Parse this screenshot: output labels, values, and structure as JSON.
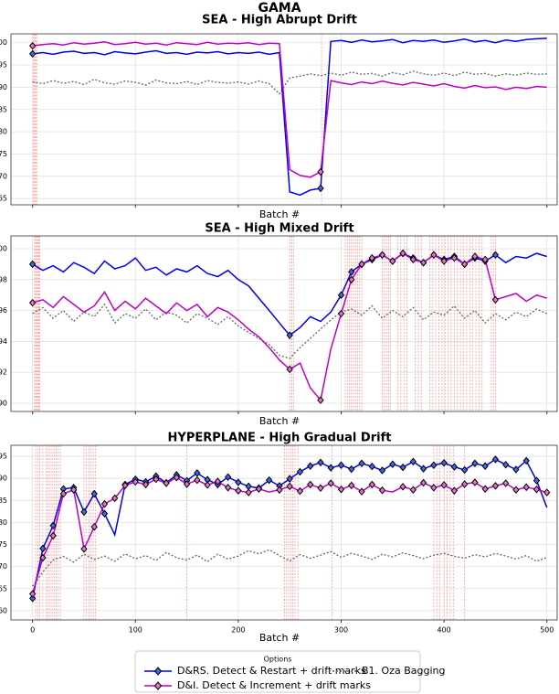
{
  "title": "GAMA",
  "legend_title": "Options",
  "chart_data": [
    {
      "type": "line",
      "title": "SEA - High Abrupt Drift",
      "xlabel": "Batch #",
      "grid": true,
      "show_xtick_labels": false,
      "xlim": [
        -21,
        510
      ],
      "ylim": [
        63.6,
        102
      ],
      "xticks": [
        0,
        100,
        200,
        300,
        400,
        500
      ],
      "yticks": [
        65,
        70,
        75,
        80,
        85,
        90,
        95,
        100
      ],
      "drift_color": "#ff9999",
      "drift_x": [
        1,
        2,
        3,
        4,
        281
      ],
      "x": [
        0,
        10,
        20,
        30,
        40,
        50,
        60,
        70,
        80,
        90,
        100,
        110,
        120,
        130,
        140,
        150,
        160,
        170,
        180,
        190,
        200,
        210,
        220,
        230,
        240,
        250,
        260,
        270,
        280,
        290,
        300,
        310,
        320,
        330,
        340,
        350,
        360,
        370,
        380,
        390,
        400,
        410,
        420,
        430,
        440,
        450,
        460,
        470,
        480,
        490,
        500
      ],
      "series": [
        {
          "name": "D&RS. Detect & Restart + drift marks",
          "color": "#0000ee",
          "style": "solid",
          "marker_color": "#4169e1",
          "marker_x": [
            0,
            280
          ],
          "values": [
            97.5,
            97.8,
            97.4,
            97.9,
            98.1,
            97.6,
            97.8,
            97.3,
            98.0,
            97.7,
            97.5,
            97.9,
            98.2,
            97.6,
            97.8,
            97.4,
            97.9,
            97.7,
            98.0,
            97.5,
            97.8,
            97.6,
            97.9,
            97.4,
            97.8,
            66.5,
            65.8,
            66.9,
            67.3,
            100.3,
            100.5,
            100.1,
            100.6,
            100.2,
            100.4,
            100.7,
            100.0,
            100.5,
            100.3,
            100.6,
            100.1,
            100.4,
            100.8,
            100.2,
            100.5,
            100.0,
            100.6,
            100.3,
            100.7,
            100.9,
            101.0
          ]
        },
        {
          "name": "D&I. Detect & Increment + drift marks",
          "color": "#c000c0",
          "style": "solid",
          "marker_color": "#e377c2",
          "marker_x": [
            0,
            280
          ],
          "values": [
            99.3,
            99.6,
            99.8,
            99.5,
            100.0,
            99.7,
            99.9,
            100.2,
            99.6,
            99.8,
            100.1,
            99.7,
            99.9,
            99.5,
            100.0,
            99.8,
            99.6,
            100.1,
            99.7,
            99.9,
            99.8,
            100.0,
            99.6,
            99.9,
            99.8,
            71.5,
            70.2,
            69.8,
            71.0,
            91.5,
            91.0,
            90.6,
            91.2,
            90.8,
            91.4,
            90.9,
            90.5,
            91.1,
            90.7,
            90.3,
            90.8,
            90.2,
            89.8,
            90.4,
            89.9,
            90.1,
            89.5,
            90.0,
            89.7,
            90.2,
            90.0
          ]
        },
        {
          "name": "B1. Oza Bagging",
          "color": "#666666",
          "style": "dotted",
          "marker_x": [],
          "values": [
            91.2,
            90.8,
            91.5,
            90.9,
            91.3,
            90.6,
            91.8,
            91.0,
            90.7,
            91.4,
            91.1,
            90.5,
            91.6,
            91.0,
            90.8,
            91.3,
            90.6,
            91.5,
            91.1,
            90.9,
            91.2,
            90.7,
            91.4,
            90.8,
            88.5,
            92.1,
            92.5,
            93.0,
            92.6,
            93.2,
            92.7,
            93.4,
            92.9,
            93.1,
            92.5,
            93.3,
            92.8,
            93.6,
            93.0,
            92.7,
            93.2,
            92.6,
            93.4,
            92.9,
            93.1,
            92.5,
            93.0,
            92.7,
            93.2,
            92.9,
            93.0
          ]
        }
      ]
    },
    {
      "type": "line",
      "title": "SEA - High Mixed Drift",
      "xlabel": "Batch #",
      "grid": true,
      "show_xtick_labels": false,
      "xlim": [
        -21,
        510
      ],
      "ylim": [
        89.47,
        100.83
      ],
      "xticks": [
        0,
        100,
        200,
        300,
        400,
        500
      ],
      "yticks": [
        90,
        92,
        94,
        96,
        98,
        100
      ],
      "drift_color": "#ff9999",
      "drift_x": [
        2,
        3,
        4,
        5,
        6,
        7,
        250,
        252,
        254,
        304,
        306,
        308,
        310,
        312,
        314,
        316,
        318,
        320,
        340,
        342,
        344,
        346,
        348,
        355,
        358,
        361,
        364,
        372,
        375,
        378,
        386,
        389,
        392,
        395,
        398,
        401,
        404,
        407,
        410,
        413,
        416,
        419,
        422,
        425,
        428,
        431,
        434,
        437,
        446,
        448,
        450
      ],
      "x": [
        0,
        10,
        20,
        30,
        40,
        50,
        60,
        70,
        80,
        90,
        100,
        110,
        120,
        130,
        140,
        150,
        160,
        170,
        180,
        190,
        200,
        210,
        220,
        230,
        240,
        250,
        260,
        270,
        280,
        290,
        300,
        310,
        320,
        330,
        340,
        350,
        360,
        370,
        380,
        390,
        400,
        410,
        420,
        430,
        440,
        450,
        460,
        470,
        480,
        490,
        500
      ],
      "series": [
        {
          "name": "D&RS. Detect & Restart + drift marks",
          "color": "#0000ee",
          "style": "solid",
          "marker_color": "#4169e1",
          "marker_x": [
            0,
            250,
            300,
            310,
            320,
            330,
            340,
            350,
            360,
            370,
            380,
            390,
            400,
            410,
            420,
            430,
            440,
            450
          ],
          "values": [
            99.0,
            98.6,
            98.9,
            98.5,
            99.1,
            98.8,
            98.4,
            99.2,
            98.7,
            98.9,
            99.4,
            98.6,
            98.8,
            98.3,
            98.7,
            98.5,
            98.9,
            98.4,
            98.2,
            98.6,
            98.0,
            97.6,
            96.8,
            96.0,
            95.2,
            94.4,
            94.9,
            95.6,
            95.3,
            95.9,
            97.0,
            98.5,
            99.0,
            99.3,
            99.6,
            99.2,
            99.7,
            99.4,
            99.1,
            99.6,
            99.3,
            99.5,
            99.0,
            99.4,
            99.2,
            99.6,
            99.1,
            99.5,
            99.4,
            99.7,
            99.5
          ]
        },
        {
          "name": "D&I. Detect & Increment + drift marks",
          "color": "#c000c0",
          "style": "solid",
          "marker_color": "#e377c2",
          "marker_x": [
            0,
            250,
            280,
            300,
            310,
            320,
            330,
            340,
            350,
            360,
            370,
            380,
            390,
            400,
            410,
            420,
            430,
            440,
            450
          ],
          "values": [
            96.5,
            96.7,
            96.2,
            96.9,
            96.4,
            95.9,
            96.3,
            97.2,
            96.0,
            96.6,
            96.1,
            96.8,
            96.3,
            95.8,
            96.5,
            96.0,
            96.4,
            95.6,
            96.2,
            95.9,
            95.4,
            94.8,
            94.3,
            93.6,
            92.8,
            92.2,
            92.6,
            91.0,
            90.2,
            93.5,
            95.8,
            98.0,
            99.0,
            99.4,
            99.6,
            99.2,
            99.7,
            99.3,
            99.1,
            99.6,
            99.2,
            99.4,
            99.0,
            99.5,
            99.3,
            96.7,
            96.9,
            97.1,
            96.6,
            97.0,
            96.8
          ]
        },
        {
          "name": "B1. Oza Bagging",
          "color": "#666666",
          "style": "dotted",
          "marker_x": [],
          "values": [
            95.8,
            96.2,
            95.5,
            96.0,
            95.3,
            95.9,
            95.6,
            96.4,
            95.2,
            95.8,
            95.5,
            96.1,
            95.4,
            95.9,
            95.7,
            95.2,
            95.8,
            95.5,
            95.1,
            95.6,
            95.0,
            94.6,
            94.2,
            93.8,
            93.1,
            92.9,
            93.6,
            94.2,
            94.8,
            95.4,
            95.9,
            96.1,
            95.7,
            96.3,
            95.5,
            96.0,
            95.6,
            96.2,
            95.4,
            95.9,
            95.7,
            96.3,
            95.5,
            96.0,
            95.2,
            95.8,
            95.4,
            95.9,
            95.6,
            96.1,
            95.8
          ]
        }
      ]
    },
    {
      "type": "line",
      "title": "HYPERPLANE - High Gradual Drift",
      "xlabel": "Batch #",
      "grid": true,
      "show_xtick_labels": true,
      "xlim": [
        -21,
        510
      ],
      "ylim": [
        57.9,
        97.5
      ],
      "xticks": [
        0,
        100,
        200,
        300,
        400,
        500
      ],
      "yticks": [
        60,
        65,
        70,
        75,
        80,
        85,
        90,
        95
      ],
      "drift_color": "#ff9999",
      "drift_x": [
        3,
        5,
        7,
        10,
        13,
        15,
        17,
        19,
        21,
        23,
        25,
        27,
        50,
        52,
        55,
        57,
        59,
        61,
        150,
        245,
        247,
        249,
        251,
        253,
        255,
        258,
        291,
        390,
        393,
        396,
        400,
        403,
        406,
        409,
        420
      ],
      "x": [
        0,
        10,
        20,
        30,
        40,
        50,
        60,
        70,
        80,
        90,
        100,
        110,
        120,
        130,
        140,
        150,
        160,
        170,
        180,
        190,
        200,
        210,
        220,
        230,
        240,
        250,
        260,
        270,
        280,
        290,
        300,
        310,
        320,
        330,
        340,
        350,
        360,
        370,
        380,
        390,
        400,
        410,
        420,
        430,
        440,
        450,
        460,
        470,
        480,
        490,
        500
      ],
      "series": [
        {
          "name": "D&RS. Detect & Restart + drift marks",
          "color": "#0000ee",
          "style": "solid",
          "marker_color": "#4169e1",
          "marker_x": [
            0,
            10,
            20,
            30,
            40,
            50,
            60,
            70,
            90,
            100,
            110,
            120,
            130,
            140,
            150,
            160,
            170,
            180,
            190,
            200,
            210,
            220,
            230,
            240,
            250,
            260,
            270,
            280,
            290,
            300,
            310,
            320,
            330,
            340,
            350,
            360,
            370,
            380,
            390,
            400,
            410,
            420,
            430,
            440,
            450,
            460,
            470,
            480,
            490
          ],
          "values": [
            62.8,
            74.1,
            79.3,
            87.6,
            87.9,
            82.4,
            86.5,
            82.0,
            77.2,
            88.6,
            89.8,
            89.2,
            90.5,
            89.0,
            90.8,
            89.5,
            91.2,
            89.7,
            88.6,
            90.3,
            89.1,
            88.2,
            87.8,
            89.6,
            88.3,
            89.9,
            91.5,
            92.8,
            93.6,
            92.4,
            93.0,
            92.1,
            93.4,
            92.7,
            91.8,
            93.2,
            92.5,
            93.8,
            92.2,
            93.0,
            93.5,
            92.6,
            91.9,
            93.4,
            92.8,
            94.3,
            93.1,
            92.0,
            94.0,
            89.5,
            83.4
          ]
        },
        {
          "name": "D&I. Detect & Increment + drift marks",
          "color": "#c000c0",
          "style": "solid",
          "marker_color": "#e377c2",
          "marker_x": [
            0,
            10,
            20,
            30,
            40,
            50,
            60,
            70,
            80,
            90,
            100,
            110,
            120,
            130,
            140,
            150,
            160,
            170,
            180,
            190,
            200,
            210,
            220,
            240,
            250,
            260,
            270,
            280,
            290,
            300,
            310,
            320,
            330,
            340,
            360,
            370,
            380,
            390,
            400,
            410,
            420,
            430,
            440,
            450,
            460,
            470,
            480,
            490,
            500
          ],
          "values": [
            63.8,
            72.0,
            77.0,
            86.5,
            87.4,
            74.0,
            79.0,
            84.2,
            85.5,
            88.4,
            89.2,
            88.6,
            89.8,
            88.9,
            90.2,
            88.7,
            89.6,
            88.5,
            89.3,
            87.9,
            87.2,
            86.8,
            87.6,
            86.9,
            87.4,
            88.2,
            87.1,
            88.6,
            87.8,
            88.9,
            87.5,
            88.4,
            87.0,
            88.6,
            87.3,
            86.9,
            88.1,
            87.4,
            89.0,
            87.9,
            88.5,
            87.2,
            88.7,
            89.1,
            87.6,
            88.3,
            88.9,
            87.4,
            88.0,
            87.5,
            86.8
          ]
        },
        {
          "name": "B1. Oza Bagging",
          "color": "#666666",
          "style": "dotted",
          "marker_x": [],
          "values": [
            65.5,
            68.8,
            71.5,
            72.3,
            71.0,
            72.8,
            71.6,
            72.4,
            71.2,
            72.9,
            71.8,
            72.5,
            71.4,
            73.2,
            72.0,
            71.5,
            72.6,
            71.1,
            72.8,
            71.7,
            72.4,
            73.6,
            72.9,
            73.8,
            72.5,
            71.3,
            72.7,
            71.9,
            72.6,
            73.4,
            72.1,
            73.0,
            72.4,
            71.6,
            72.8,
            72.2,
            73.1,
            72.5,
            71.8,
            72.6,
            73.0,
            72.3,
            71.9,
            72.7,
            72.2,
            73.0,
            72.4,
            71.7,
            72.5,
            71.2,
            72.1
          ]
        }
      ]
    }
  ]
}
